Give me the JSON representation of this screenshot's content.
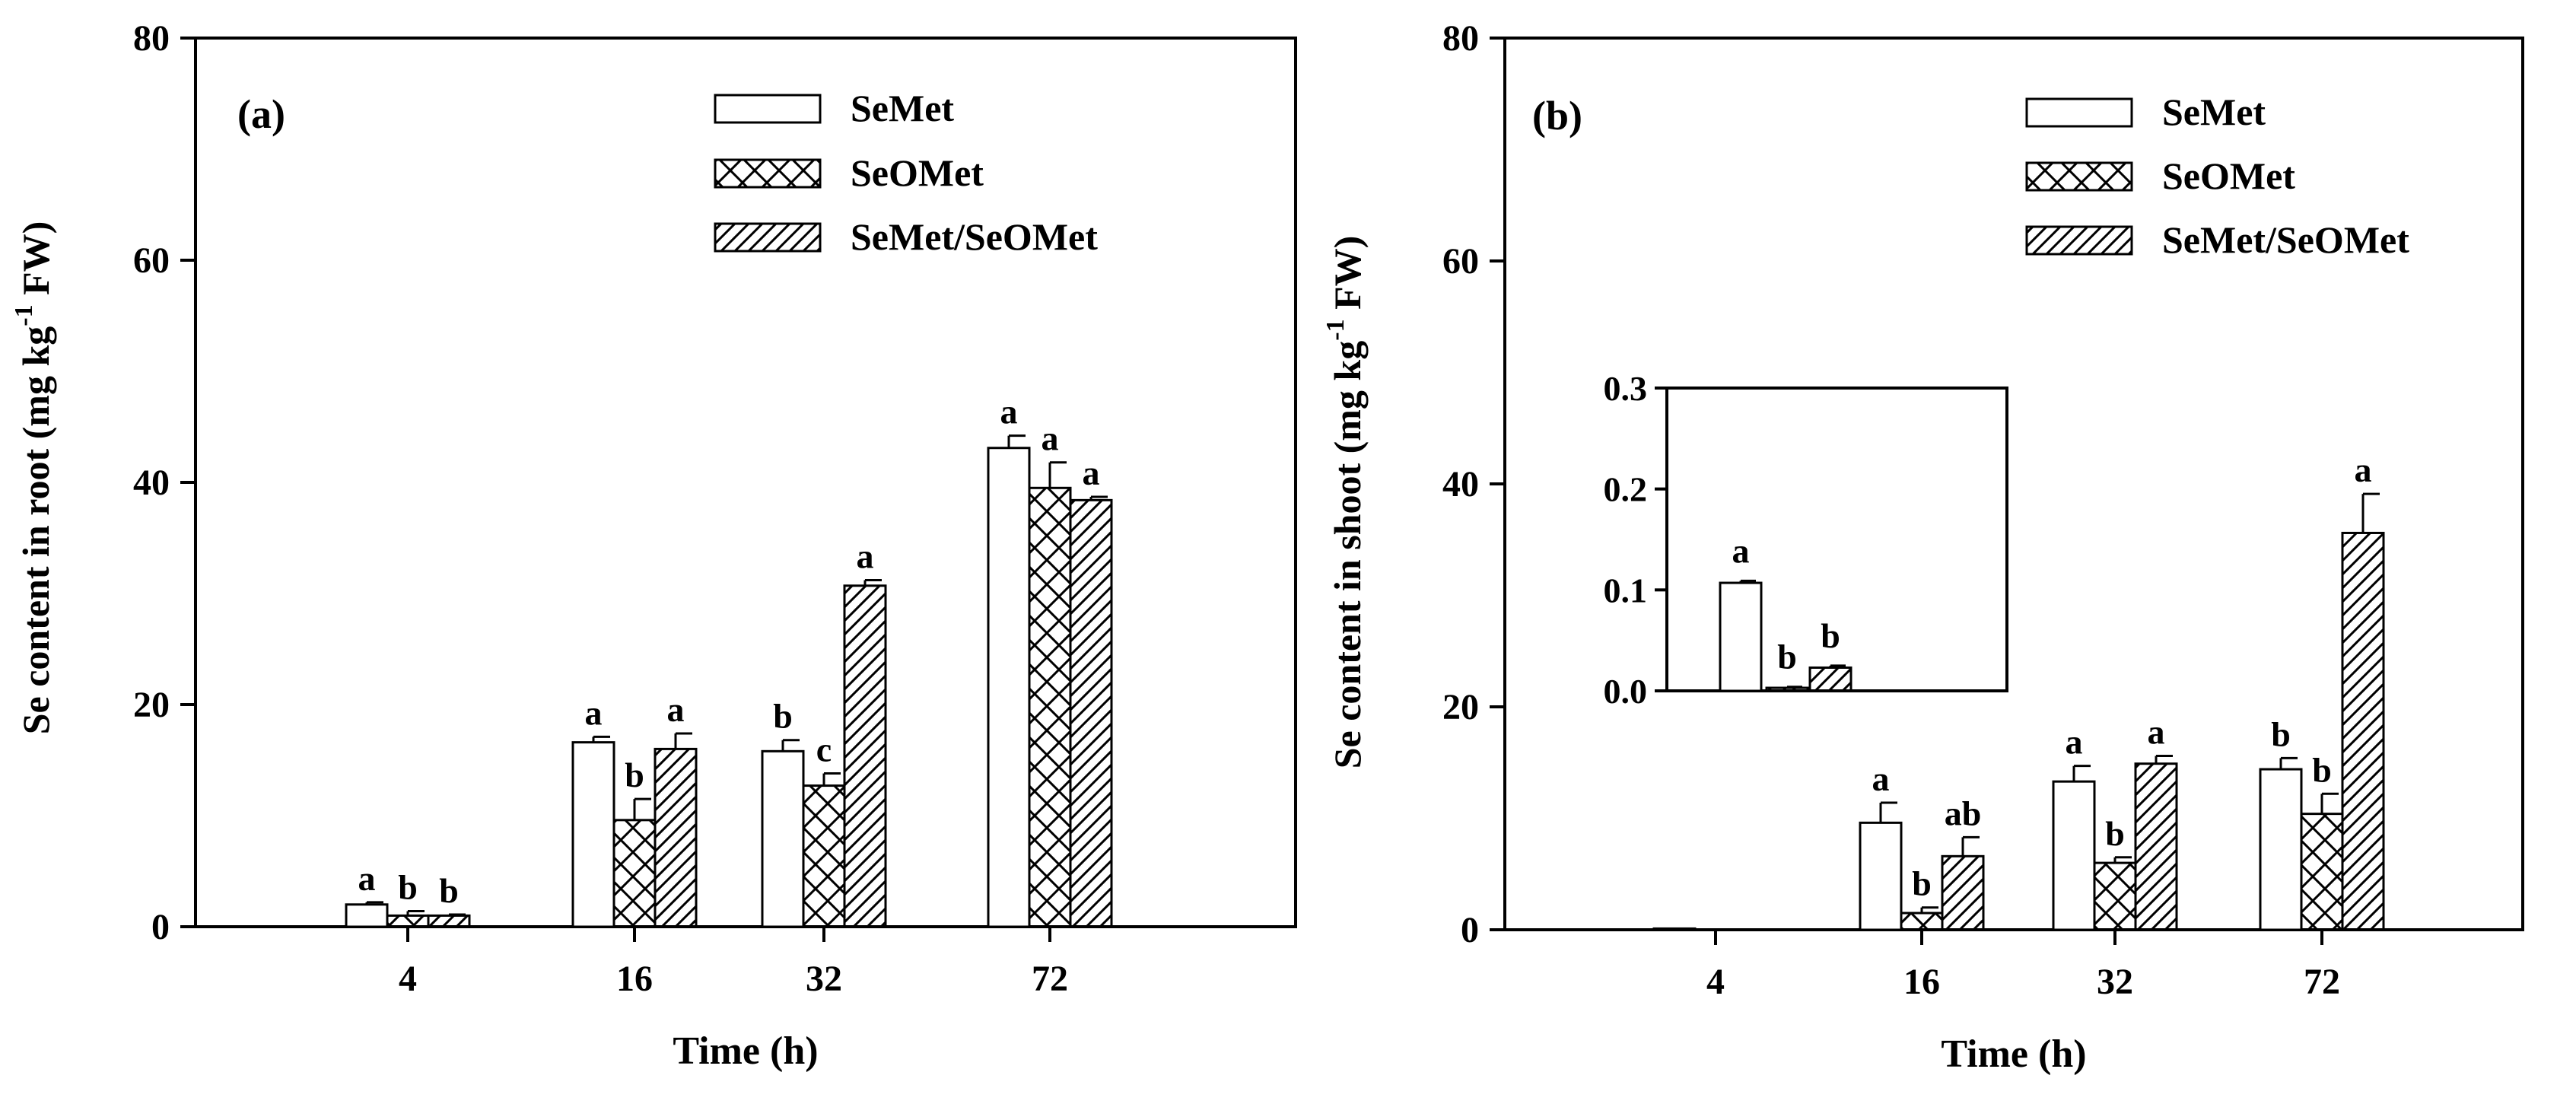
{
  "legend_labels": [
    "SeMet",
    "SeOMet",
    "SeMet/SeOMet"
  ],
  "chart_data": [
    {
      "type": "bar",
      "panel_label": "(a)",
      "xlabel": "Time (h)",
      "ylabel": "Se content in root (mg kg-1 FW)",
      "ylabel_parts": {
        "main": "Se content in root (mg kg",
        "sup": "-1",
        "tail": " FW)"
      },
      "categories": [
        "4",
        "16",
        "32",
        "72"
      ],
      "ylim": [
        0,
        80
      ],
      "yticks": [
        "0",
        "20",
        "40",
        "60",
        "80"
      ],
      "grid": false,
      "legend_position": "top-right",
      "series": [
        {
          "name": "SeMet",
          "pattern": "open",
          "values": [
            2.0,
            16.6,
            15.8,
            43.1
          ],
          "errors": [
            0.2,
            0.5,
            1.0,
            1.1
          ],
          "letters": [
            "a",
            "a",
            "b",
            "a"
          ]
        },
        {
          "name": "SeOMet",
          "pattern": "crosshatch",
          "values": [
            1.0,
            9.6,
            12.7,
            39.5
          ],
          "errors": [
            0.4,
            1.9,
            1.1,
            2.3
          ],
          "letters": [
            "b",
            "b",
            "c",
            "a"
          ]
        },
        {
          "name": "SeMet/SeOMet",
          "pattern": "diagonal",
          "values": [
            1.0,
            16.0,
            30.7,
            38.4
          ],
          "errors": [
            0.1,
            1.4,
            0.5,
            0.3
          ],
          "letters": [
            "b",
            "a",
            "a",
            "a"
          ]
        }
      ]
    },
    {
      "type": "bar",
      "panel_label": "(b)",
      "xlabel": "Time (h)",
      "ylabel": "Se content in shoot (mg kg-1 FW)",
      "ylabel_parts": {
        "main": "Se content in shoot (mg kg",
        "sup": "-1",
        "tail": " FW)"
      },
      "categories": [
        "4",
        "16",
        "32",
        "72"
      ],
      "ylim": [
        0,
        80
      ],
      "yticks": [
        "0",
        "20",
        "40",
        "60",
        "80"
      ],
      "grid": false,
      "legend_position": "top-right",
      "series": [
        {
          "name": "SeMet",
          "pattern": "open",
          "values": [
            0.107,
            9.6,
            13.3,
            14.4
          ],
          "errors": [
            0,
            1.8,
            1.4,
            1.0
          ],
          "letters": [
            "",
            "a",
            "a",
            "b"
          ]
        },
        {
          "name": "SeOMet",
          "pattern": "crosshatch",
          "values": [
            0.003,
            1.5,
            6.0,
            10.4
          ],
          "errors": [
            0,
            0.5,
            0.5,
            1.8
          ],
          "letters": [
            "",
            "b",
            "b",
            "b"
          ]
        },
        {
          "name": "SeMet/SeOMet",
          "pattern": "diagonal",
          "values": [
            0.023,
            6.6,
            14.9,
            35.6
          ],
          "errors": [
            0,
            1.7,
            0.7,
            3.5
          ],
          "letters": [
            "",
            "ab",
            "a",
            "a"
          ]
        }
      ],
      "inset": {
        "category": "4",
        "ylim": [
          0,
          0.3
        ],
        "yticks": [
          "0.0",
          "0.1",
          "0.2",
          "0.3"
        ],
        "values": [
          0.107,
          0.003,
          0.023
        ],
        "errors": [
          0.002,
          0.001,
          0.002
        ],
        "letters": [
          "a",
          "b",
          "b"
        ]
      }
    }
  ]
}
